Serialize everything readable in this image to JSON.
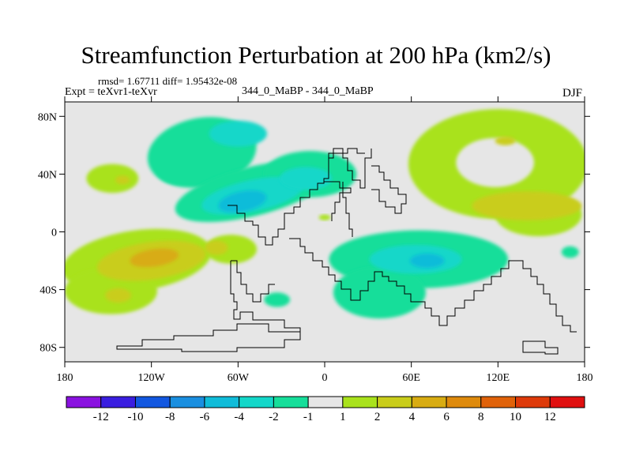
{
  "chart_data": {
    "type": "heatmap",
    "title": "Streamfunction Perturbation at 200 hPa (km2/s)",
    "stats_text": "rmsd= 1.67711 diff= 1.95432e-08",
    "experiment": "Expt = teXvr1-teXvr",
    "case_label": "344_0_MaBP - 344_0_MaBP",
    "season": "DJF",
    "projection": "cylindrical equidistant",
    "xlim": [
      -180,
      180
    ],
    "ylim": [
      -90,
      90
    ],
    "x_ticks": [
      {
        "value": -180,
        "label": "180"
      },
      {
        "value": -120,
        "label": "120W"
      },
      {
        "value": -60,
        "label": "60W"
      },
      {
        "value": 0,
        "label": "0"
      },
      {
        "value": 60,
        "label": "60E"
      },
      {
        "value": 120,
        "label": "120E"
      },
      {
        "value": 180,
        "label": "180"
      }
    ],
    "y_ticks": [
      {
        "value": 80,
        "label": "80N"
      },
      {
        "value": 40,
        "label": "40N"
      },
      {
        "value": 0,
        "label": "0"
      },
      {
        "value": -40,
        "label": "40S"
      },
      {
        "value": -80,
        "label": "80S"
      }
    ],
    "colorbar": {
      "labels": [
        "-12",
        "-10",
        "-8",
        "-6",
        "-4",
        "-2",
        "-1",
        "1",
        "2",
        "4",
        "6",
        "8",
        "10",
        "12"
      ],
      "colors": [
        "#8a12e0",
        "#3a1ee0",
        "#1257e0",
        "#1a8fe0",
        "#10bcd9",
        "#14d7c9",
        "#16de9a",
        "#e6e6e6",
        "#a9e21c",
        "#c9cd1a",
        "#d8ac12",
        "#de8a0c",
        "#e0620a",
        "#de3a0a",
        "#e01010"
      ]
    },
    "background_color": "#e6e6e6",
    "regions": [
      {
        "level": -2,
        "lon": -101,
        "lat": 44,
        "rx": 16,
        "ry": 11,
        "rot": 0
      },
      {
        "level": -2,
        "lon": -85,
        "lat": 55,
        "rx": 38,
        "ry": 24,
        "rot": -10
      },
      {
        "level": -2,
        "lon": -50,
        "lat": 28,
        "rx": 55,
        "ry": 17,
        "rot": -14
      },
      {
        "level": -2,
        "lon": -10,
        "lat": 40,
        "rx": 32,
        "ry": 16,
        "rot": 0
      },
      {
        "level": -2,
        "lon": 65,
        "lat": -19,
        "rx": 62,
        "ry": 20,
        "rot": 0
      },
      {
        "level": -2,
        "lon": 38,
        "lat": -42,
        "rx": 32,
        "ry": 18,
        "rot": 0
      },
      {
        "level": -2,
        "lon": -33,
        "lat": -47,
        "rx": 9,
        "ry": 5,
        "rot": 0
      },
      {
        "level": -2,
        "lon": 170,
        "lat": -14,
        "rx": 6,
        "ry": 4,
        "rot": 0
      },
      {
        "level": -4,
        "lon": -60,
        "lat": 68,
        "rx": 20,
        "ry": 9,
        "rot": 0
      },
      {
        "level": -4,
        "lon": -50,
        "lat": 25,
        "rx": 36,
        "ry": 11,
        "rot": -12
      },
      {
        "level": -4,
        "lon": -13,
        "lat": 37,
        "rx": 18,
        "ry": 8,
        "rot": 0
      },
      {
        "level": -4,
        "lon": 63,
        "lat": -19,
        "rx": 32,
        "ry": 10,
        "rot": 0
      },
      {
        "level": -6,
        "lon": -57,
        "lat": 21,
        "rx": 17,
        "ry": 7,
        "rot": -12
      },
      {
        "level": -6,
        "lon": 71,
        "lat": -20,
        "rx": 12,
        "ry": 5,
        "rot": 0
      },
      {
        "level": 2,
        "lon": 120,
        "lat": 47,
        "rx": 62,
        "ry": 38,
        "rot": 0
      },
      {
        "level": 2,
        "lon": 148,
        "lat": 12,
        "rx": 30,
        "ry": 15,
        "rot": 0
      },
      {
        "level": 2,
        "lon": -147,
        "lat": 37,
        "rx": 18,
        "ry": 10,
        "rot": 0
      },
      {
        "level": 2,
        "lon": -130,
        "lat": -20,
        "rx": 52,
        "ry": 21,
        "rot": -8
      },
      {
        "level": 2,
        "lon": -148,
        "lat": -41,
        "rx": 32,
        "ry": 16,
        "rot": 0
      },
      {
        "level": 2,
        "lon": -65,
        "lat": -12,
        "rx": 18,
        "ry": 10,
        "rot": 0
      },
      {
        "level": 2,
        "lon": 0,
        "lat": 10,
        "rx": 4,
        "ry": 2,
        "rot": 0
      },
      {
        "level": 4,
        "lon": -140,
        "lat": 36,
        "rx": 5,
        "ry": 3,
        "rot": 0
      },
      {
        "level": 4,
        "lon": 140,
        "lat": 18,
        "rx": 38,
        "ry": 10,
        "rot": 0
      },
      {
        "level": 4,
        "lon": 125,
        "lat": 63,
        "rx": 7,
        "ry": 3,
        "rot": 0
      },
      {
        "level": 4,
        "lon": -120,
        "lat": -20,
        "rx": 38,
        "ry": 13,
        "rot": -8
      },
      {
        "level": 4,
        "lon": -143,
        "lat": -44,
        "rx": 9,
        "ry": 5,
        "rot": 0
      },
      {
        "level": 4,
        "lon": -75,
        "lat": -11,
        "rx": 8,
        "ry": 5,
        "rot": 0
      },
      {
        "level": 6,
        "lon": -118,
        "lat": -18,
        "rx": 17,
        "ry": 6,
        "rot": -8
      }
    ],
    "background_holes": [
      {
        "lon": 118,
        "lat": 48,
        "rx": 27,
        "ry": 17
      }
    ]
  }
}
